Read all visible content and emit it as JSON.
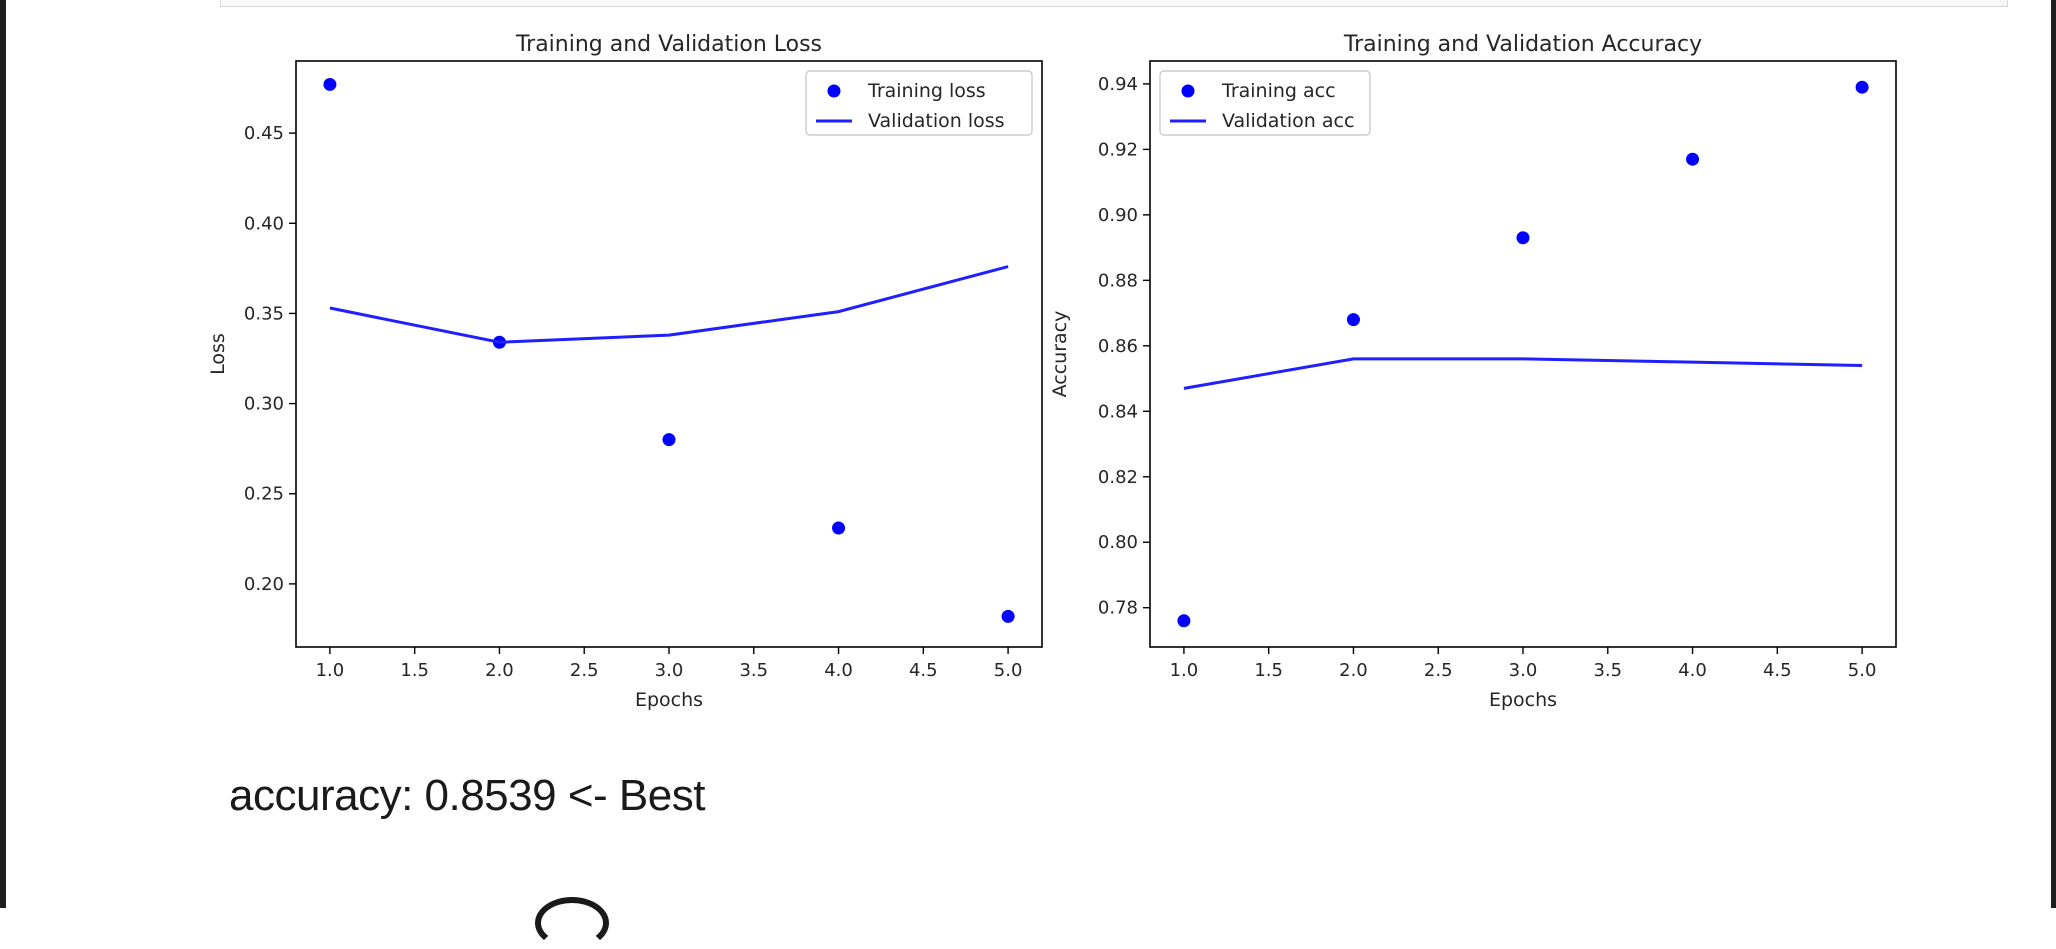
{
  "chart_data": [
    {
      "type": "line",
      "title": "Training and Validation Loss",
      "xlabel": "Epochs",
      "ylabel": "Loss",
      "x": [
        1,
        2,
        3,
        4,
        5
      ],
      "xlim": [
        0.8,
        5.2
      ],
      "ylim": [
        0.165,
        0.49
      ],
      "xticks": [
        1.0,
        1.5,
        2.0,
        2.5,
        3.0,
        3.5,
        4.0,
        4.5,
        5.0
      ],
      "xtick_labels": [
        "1.0",
        "1.5",
        "2.0",
        "2.5",
        "3.0",
        "3.5",
        "4.0",
        "4.5",
        "5.0"
      ],
      "yticks": [
        0.2,
        0.25,
        0.3,
        0.35,
        0.4,
        0.45
      ],
      "ytick_labels": [
        "0.20",
        "0.25",
        "0.30",
        "0.35",
        "0.40",
        "0.45"
      ],
      "legend_position": "top-right",
      "series": [
        {
          "name": "Training loss",
          "style": "points",
          "color": "#0000ff",
          "values": [
            0.477,
            0.334,
            0.28,
            0.231,
            0.182
          ]
        },
        {
          "name": "Validation loss",
          "style": "line",
          "color": "#1f1fff",
          "values": [
            0.353,
            0.334,
            0.338,
            0.351,
            0.376
          ]
        }
      ]
    },
    {
      "type": "line",
      "title": "Training and Validation Accuracy",
      "xlabel": "Epochs",
      "ylabel": "Accuracy",
      "x": [
        1,
        2,
        3,
        4,
        5
      ],
      "xlim": [
        0.8,
        5.2
      ],
      "ylim": [
        0.768,
        0.947
      ],
      "xticks": [
        1.0,
        1.5,
        2.0,
        2.5,
        3.0,
        3.5,
        4.0,
        4.5,
        5.0
      ],
      "xtick_labels": [
        "1.0",
        "1.5",
        "2.0",
        "2.5",
        "3.0",
        "3.5",
        "4.0",
        "4.5",
        "5.0"
      ],
      "yticks": [
        0.78,
        0.8,
        0.82,
        0.84,
        0.86,
        0.88,
        0.9,
        0.92,
        0.94
      ],
      "ytick_labels": [
        "0.78",
        "0.80",
        "0.82",
        "0.84",
        "0.86",
        "0.88",
        "0.90",
        "0.92",
        "0.94"
      ],
      "legend_position": "top-left",
      "series": [
        {
          "name": "Training acc",
          "style": "points",
          "color": "#0000ff",
          "values": [
            0.776,
            0.868,
            0.893,
            0.917,
            0.939
          ]
        },
        {
          "name": "Validation acc",
          "style": "line",
          "color": "#1f1fff",
          "values": [
            0.847,
            0.856,
            0.856,
            0.855,
            0.854
          ]
        }
      ]
    }
  ],
  "result_text": "accuracy: 0.8539 <- Best",
  "colors": {
    "frame": "#1f1f1f",
    "series": "#0000ff"
  }
}
